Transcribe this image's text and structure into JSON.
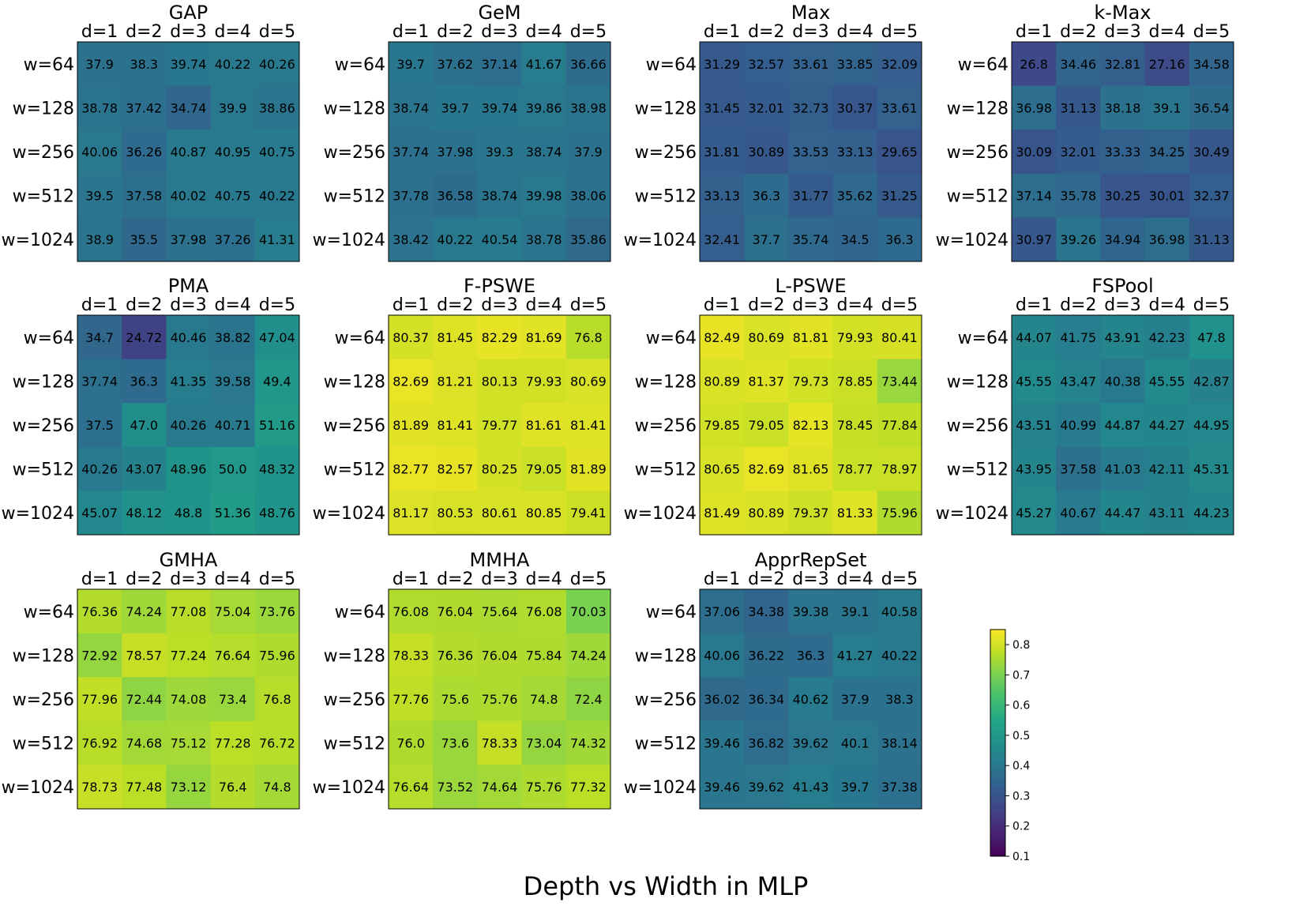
{
  "chart_data": {
    "type": "heatmap",
    "suptitle": "Depth vs Width in MLP",
    "columns": [
      "d=1",
      "d=2",
      "d=3",
      "d=4",
      "d=5"
    ],
    "rows": [
      "w=64",
      "w=128",
      "w=256",
      "w=512",
      "w=1024"
    ],
    "colormap": "viridis",
    "colorbar": {
      "vmin": 0.1,
      "vmax": 0.85,
      "ticks": [
        "0.1",
        "0.2",
        "0.3",
        "0.4",
        "0.5",
        "0.6",
        "0.7",
        "0.8"
      ],
      "tick_values": [
        0.1,
        0.2,
        0.3,
        0.4,
        0.5,
        0.6,
        0.7,
        0.8
      ]
    },
    "panels": [
      {
        "title": "GAP",
        "values": [
          [
            37.9,
            38.3,
            39.74,
            40.22,
            40.26
          ],
          [
            38.78,
            37.42,
            34.74,
            39.9,
            38.86
          ],
          [
            40.06,
            36.26,
            40.87,
            40.95,
            40.75
          ],
          [
            39.5,
            37.58,
            40.02,
            40.75,
            40.22
          ],
          [
            38.9,
            35.5,
            37.98,
            37.26,
            41.31
          ]
        ],
        "labels": [
          [
            "37.9",
            "38.3",
            "39.74",
            "40.22",
            "40.26"
          ],
          [
            "38.78",
            "37.42",
            "34.74",
            "39.9",
            "38.86"
          ],
          [
            "40.06",
            "36.26",
            "40.87",
            "40.95",
            "40.75"
          ],
          [
            "39.5",
            "37.58",
            "40.02",
            "40.75",
            "40.22"
          ],
          [
            "38.9",
            "35.5",
            "37.98",
            "37.26",
            "41.31"
          ]
        ]
      },
      {
        "title": "GeM",
        "values": [
          [
            39.7,
            37.62,
            37.14,
            41.67,
            36.66
          ],
          [
            38.74,
            39.7,
            39.74,
            39.86,
            38.98
          ],
          [
            37.74,
            37.98,
            39.3,
            38.74,
            37.9
          ],
          [
            37.78,
            36.58,
            38.74,
            39.98,
            38.06
          ],
          [
            38.42,
            40.22,
            40.54,
            38.78,
            35.86
          ]
        ],
        "labels": [
          [
            "39.7",
            "37.62",
            "37.14",
            "41.67",
            "36.66"
          ],
          [
            "38.74",
            "39.7",
            "39.74",
            "39.86",
            "38.98"
          ],
          [
            "37.74",
            "37.98",
            "39.3",
            "38.74",
            "37.9"
          ],
          [
            "37.78",
            "36.58",
            "38.74",
            "39.98",
            "38.06"
          ],
          [
            "38.42",
            "40.22",
            "40.54",
            "38.78",
            "35.86"
          ]
        ]
      },
      {
        "title": "Max",
        "values": [
          [
            31.29,
            32.57,
            33.61,
            33.85,
            32.09
          ],
          [
            31.45,
            32.01,
            32.73,
            30.37,
            33.61
          ],
          [
            31.81,
            30.89,
            33.53,
            33.13,
            29.65
          ],
          [
            33.13,
            36.3,
            31.77,
            35.62,
            31.25
          ],
          [
            32.41,
            37.7,
            35.74,
            34.5,
            36.3
          ]
        ],
        "labels": [
          [
            "31.29",
            "32.57",
            "33.61",
            "33.85",
            "32.09"
          ],
          [
            "31.45",
            "32.01",
            "32.73",
            "30.37",
            "33.61"
          ],
          [
            "31.81",
            "30.89",
            "33.53",
            "33.13",
            "29.65"
          ],
          [
            "33.13",
            "36.3",
            "31.77",
            "35.62",
            "31.25"
          ],
          [
            "32.41",
            "37.7",
            "35.74",
            "34.5",
            "36.3"
          ]
        ]
      },
      {
        "title": "k-Max",
        "values": [
          [
            26.8,
            34.46,
            32.81,
            27.16,
            34.58
          ],
          [
            36.98,
            31.13,
            38.18,
            39.1,
            36.54
          ],
          [
            30.09,
            32.01,
            33.33,
            34.25,
            30.49
          ],
          [
            37.14,
            35.78,
            30.25,
            30.01,
            32.37
          ],
          [
            30.97,
            39.26,
            34.94,
            36.98,
            31.13
          ]
        ],
        "labels": [
          [
            "26.8",
            "34.46",
            "32.81",
            "27.16",
            "34.58"
          ],
          [
            "36.98",
            "31.13",
            "38.18",
            "39.1",
            "36.54"
          ],
          [
            "30.09",
            "32.01",
            "33.33",
            "34.25",
            "30.49"
          ],
          [
            "37.14",
            "35.78",
            "30.25",
            "30.01",
            "32.37"
          ],
          [
            "30.97",
            "39.26",
            "34.94",
            "36.98",
            "31.13"
          ]
        ]
      },
      {
        "title": "PMA",
        "values": [
          [
            34.7,
            24.72,
            40.46,
            38.82,
            47.04
          ],
          [
            37.74,
            36.3,
            41.35,
            39.58,
            49.4
          ],
          [
            37.5,
            47.0,
            40.26,
            40.71,
            51.16
          ],
          [
            40.26,
            43.07,
            48.96,
            50.0,
            48.32
          ],
          [
            45.07,
            48.12,
            48.8,
            51.36,
            48.76
          ]
        ],
        "labels": [
          [
            "34.7",
            "24.72",
            "40.46",
            "38.82",
            "47.04"
          ],
          [
            "37.74",
            "36.3",
            "41.35",
            "39.58",
            "49.4"
          ],
          [
            "37.5",
            "47.0",
            "40.26",
            "40.71",
            "51.16"
          ],
          [
            "40.26",
            "43.07",
            "48.96",
            "50.0",
            "48.32"
          ],
          [
            "45.07",
            "48.12",
            "48.8",
            "51.36",
            "48.76"
          ]
        ]
      },
      {
        "title": "F-PSWE",
        "values": [
          [
            80.37,
            81.45,
            82.29,
            81.69,
            76.8
          ],
          [
            82.69,
            81.21,
            80.13,
            79.93,
            80.69
          ],
          [
            81.89,
            81.41,
            79.77,
            81.61,
            81.41
          ],
          [
            82.77,
            82.57,
            80.25,
            79.05,
            81.89
          ],
          [
            81.17,
            80.53,
            80.61,
            80.85,
            79.41
          ]
        ],
        "labels": [
          [
            "80.37",
            "81.45",
            "82.29",
            "81.69",
            "76.8"
          ],
          [
            "82.69",
            "81.21",
            "80.13",
            "79.93",
            "80.69"
          ],
          [
            "81.89",
            "81.41",
            "79.77",
            "81.61",
            "81.41"
          ],
          [
            "82.77",
            "82.57",
            "80.25",
            "79.05",
            "81.89"
          ],
          [
            "81.17",
            "80.53",
            "80.61",
            "80.85",
            "79.41"
          ]
        ]
      },
      {
        "title": "L-PSWE",
        "values": [
          [
            82.49,
            80.69,
            81.81,
            79.93,
            80.41
          ],
          [
            80.89,
            81.37,
            79.73,
            78.85,
            73.44
          ],
          [
            79.85,
            79.05,
            82.13,
            78.45,
            77.84
          ],
          [
            80.65,
            82.69,
            81.65,
            78.77,
            78.97
          ],
          [
            81.49,
            80.89,
            79.37,
            81.33,
            75.96
          ]
        ],
        "labels": [
          [
            "82.49",
            "80.69",
            "81.81",
            "79.93",
            "80.41"
          ],
          [
            "80.89",
            "81.37",
            "79.73",
            "78.85",
            "73.44"
          ],
          [
            "79.85",
            "79.05",
            "82.13",
            "78.45",
            "77.84"
          ],
          [
            "80.65",
            "82.69",
            "81.65",
            "78.77",
            "78.97"
          ],
          [
            "81.49",
            "80.89",
            "79.37",
            "81.33",
            "75.96"
          ]
        ]
      },
      {
        "title": "FSPool",
        "values": [
          [
            44.07,
            41.75,
            43.91,
            42.23,
            47.8
          ],
          [
            45.55,
            43.47,
            40.38,
            45.55,
            42.87
          ],
          [
            43.51,
            40.99,
            44.87,
            44.27,
            44.95
          ],
          [
            43.95,
            37.58,
            41.03,
            42.11,
            45.31
          ],
          [
            45.27,
            40.67,
            44.47,
            43.11,
            44.23
          ]
        ],
        "labels": [
          [
            "44.07",
            "41.75",
            "43.91",
            "42.23",
            "47.8"
          ],
          [
            "45.55",
            "43.47",
            "40.38",
            "45.55",
            "42.87"
          ],
          [
            "43.51",
            "40.99",
            "44.87",
            "44.27",
            "44.95"
          ],
          [
            "43.95",
            "37.58",
            "41.03",
            "42.11",
            "45.31"
          ],
          [
            "45.27",
            "40.67",
            "44.47",
            "43.11",
            "44.23"
          ]
        ]
      },
      {
        "title": "GMHA",
        "values": [
          [
            76.36,
            74.24,
            77.08,
            75.04,
            73.76
          ],
          [
            72.92,
            78.57,
            77.24,
            76.64,
            75.96
          ],
          [
            77.96,
            72.44,
            74.08,
            73.4,
            76.8
          ],
          [
            76.92,
            74.68,
            75.12,
            77.28,
            76.72
          ],
          [
            78.73,
            77.48,
            73.12,
            76.4,
            74.8
          ]
        ],
        "labels": [
          [
            "76.36",
            "74.24",
            "77.08",
            "75.04",
            "73.76"
          ],
          [
            "72.92",
            "78.57",
            "77.24",
            "76.64",
            "75.96"
          ],
          [
            "77.96",
            "72.44",
            "74.08",
            "73.4",
            "76.8"
          ],
          [
            "76.92",
            "74.68",
            "75.12",
            "77.28",
            "76.72"
          ],
          [
            "78.73",
            "77.48",
            "73.12",
            "76.4",
            "74.8"
          ]
        ]
      },
      {
        "title": "MMHA",
        "values": [
          [
            76.08,
            76.04,
            75.64,
            76.08,
            70.03
          ],
          [
            78.33,
            76.36,
            76.04,
            75.84,
            74.24
          ],
          [
            77.76,
            75.6,
            75.76,
            74.8,
            72.4
          ],
          [
            76.0,
            73.6,
            78.33,
            73.04,
            74.32
          ],
          [
            76.64,
            73.52,
            74.64,
            75.76,
            77.32
          ]
        ],
        "labels": [
          [
            "76.08",
            "76.04",
            "75.64",
            "76.08",
            "70.03"
          ],
          [
            "78.33",
            "76.36",
            "76.04",
            "75.84",
            "74.24"
          ],
          [
            "77.76",
            "75.6",
            "75.76",
            "74.8",
            "72.4"
          ],
          [
            "76.0",
            "73.6",
            "78.33",
            "73.04",
            "74.32"
          ],
          [
            "76.64",
            "73.52",
            "74.64",
            "75.76",
            "77.32"
          ]
        ]
      },
      {
        "title": "ApprRepSet",
        "values": [
          [
            37.06,
            34.38,
            39.38,
            39.1,
            40.58
          ],
          [
            40.06,
            36.22,
            36.3,
            41.27,
            40.22
          ],
          [
            36.02,
            36.34,
            40.62,
            37.9,
            38.3
          ],
          [
            39.46,
            36.82,
            39.62,
            40.1,
            38.14
          ],
          [
            39.46,
            39.62,
            41.43,
            39.7,
            37.38
          ]
        ],
        "labels": [
          [
            "37.06",
            "34.38",
            "39.38",
            "39.1",
            "40.58"
          ],
          [
            "40.06",
            "36.22",
            "36.3",
            "41.27",
            "40.22"
          ],
          [
            "36.02",
            "36.34",
            "40.62",
            "37.9",
            "38.3"
          ],
          [
            "39.46",
            "36.82",
            "39.62",
            "40.1",
            "38.14"
          ],
          [
            "39.46",
            "39.62",
            "41.43",
            "39.7",
            "37.38"
          ]
        ]
      }
    ]
  }
}
